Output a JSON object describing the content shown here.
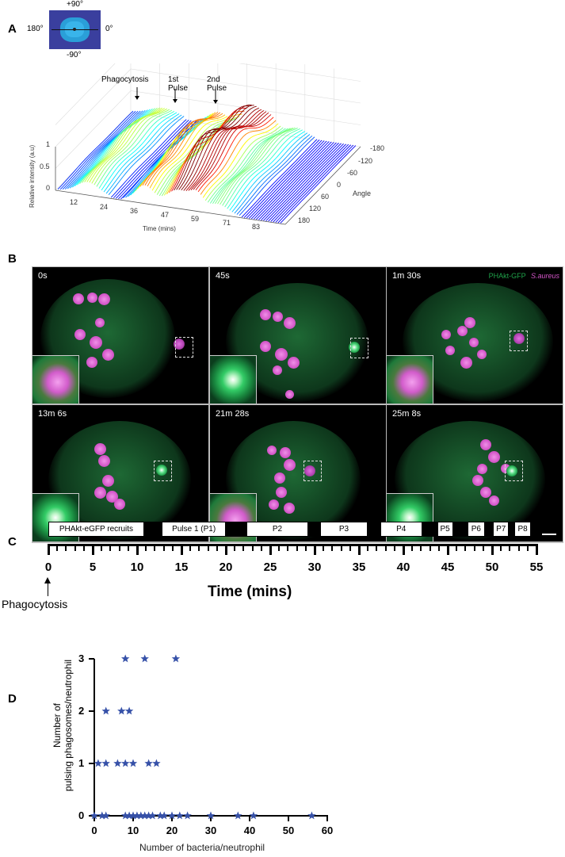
{
  "panel_labels": {
    "a": "A",
    "b": "B",
    "c": "C",
    "d": "D"
  },
  "panel_a": {
    "inset_labels": {
      "top": "+90°",
      "left": "180°",
      "right": "0°",
      "bottom": "-90°"
    },
    "annotations": {
      "phagocytosis": "Phagocytosis",
      "pulse1": "1st\nPulse",
      "pulse2": "2nd\nPulse"
    },
    "z_axis_label": "Relative intensity (a.u)",
    "z_ticks": [
      "0",
      "0.5",
      "1"
    ],
    "time_ticks": [
      "12",
      "24",
      "36",
      "47",
      "59",
      "71",
      "83"
    ],
    "time_label": "Time (mins)",
    "angle_ticks": [
      "-180",
      "-120",
      "-60",
      "0",
      "60",
      "120",
      "180"
    ],
    "angle_label": "Angle"
  },
  "panel_b": {
    "frames": [
      {
        "label": "0s"
      },
      {
        "label": "45s"
      },
      {
        "label": "1m 30s"
      },
      {
        "label": "13m 6s"
      },
      {
        "label": "21m 28s"
      },
      {
        "label": "25m 8s"
      }
    ],
    "legend": {
      "gfp": "PHAkt-GFP",
      "bacteria": "S.aureus"
    },
    "colors": {
      "gfp": "#1fa34a",
      "bacteria": "#d455c8"
    }
  },
  "chart_data": [
    {
      "type": "timeline",
      "xlabel": "Time (mins)",
      "xlim": [
        0,
        55
      ],
      "x_ticks": [
        "0",
        "5",
        "10",
        "15",
        "20",
        "25",
        "30",
        "35",
        "40",
        "45",
        "50",
        "55"
      ],
      "annotation": "Phagocytosis",
      "segments": [
        {
          "label": "PHAkt-eGFP recruits",
          "start": 0,
          "end": 10.8
        },
        {
          "label": "Pulse 1 (P1)",
          "start": 12.8,
          "end": 20.0
        },
        {
          "label": "P2",
          "start": 22.3,
          "end": 29.3
        },
        {
          "label": "P3",
          "start": 30.6,
          "end": 36.0
        },
        {
          "label": "P4",
          "start": 37.4,
          "end": 42.1
        },
        {
          "label": "P5",
          "start": 43.8,
          "end": 45.6
        },
        {
          "label": "P6",
          "start": 47.2,
          "end": 49.2
        },
        {
          "label": "P7",
          "start": 50.1,
          "end": 51.9
        },
        {
          "label": "P8",
          "start": 52.5,
          "end": 54.4
        }
      ]
    },
    {
      "type": "scatter",
      "xlabel": "Number of bacteria/neutrophil",
      "ylabel": "Number of\npulsing phagosomes/neutrophil",
      "xlim": [
        0,
        60
      ],
      "ylim": [
        0,
        3
      ],
      "x_ticks": [
        "0",
        "10",
        "20",
        "30",
        "40",
        "50",
        "60"
      ],
      "y_ticks": [
        "0",
        "1",
        "2",
        "3"
      ],
      "marker_color": "#3651a8",
      "points": [
        [
          0,
          0
        ],
        [
          2,
          0
        ],
        [
          3,
          0
        ],
        [
          8,
          0
        ],
        [
          9,
          0
        ],
        [
          10,
          0
        ],
        [
          11,
          0
        ],
        [
          12,
          0
        ],
        [
          13,
          0
        ],
        [
          14,
          0
        ],
        [
          15,
          0
        ],
        [
          17,
          0
        ],
        [
          18,
          0
        ],
        [
          20,
          0
        ],
        [
          22,
          0
        ],
        [
          24,
          0
        ],
        [
          30,
          0
        ],
        [
          37,
          0
        ],
        [
          41,
          0
        ],
        [
          56,
          0
        ],
        [
          1,
          1
        ],
        [
          3,
          1
        ],
        [
          6,
          1
        ],
        [
          8,
          1
        ],
        [
          10,
          1
        ],
        [
          14,
          1
        ],
        [
          16,
          1
        ],
        [
          3,
          2
        ],
        [
          7,
          2
        ],
        [
          9,
          2
        ],
        [
          8,
          3
        ],
        [
          13,
          3
        ],
        [
          21,
          3
        ]
      ]
    }
  ]
}
